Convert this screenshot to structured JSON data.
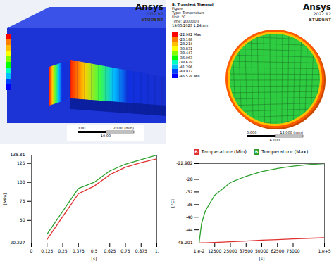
{
  "screenshots": [
    {
      "logo": [
        "Ansys",
        "2022 R2",
        "STUDENT"
      ],
      "scale_bar": [
        "0.00",
        "20.00 (mm)",
        "10.00"
      ]
    },
    {
      "logo": [
        "Ansys",
        "2022 R2",
        "STUDENT"
      ],
      "header": [
        "B: Transient Thermal",
        "Figure",
        "Type: Temperature",
        "Unit: °C",
        "Time: 100000 s",
        "19/05/2023 1:24 am"
      ],
      "legend_labels": [
        "-22.982 Max",
        "-25.198",
        "-28.214",
        "-30.831",
        "-33.447",
        "-36.063",
        "-38.679",
        "-41.296",
        "-43.912",
        "-46.528 Min"
      ],
      "scale_bar": [
        "0.000",
        "12.000 (mm)",
        "6.000"
      ]
    }
  ],
  "chart_data": [
    {
      "type": "line",
      "x_label": "[s]",
      "y_label": "[MPa]",
      "x": [
        0.125,
        0.25,
        0.375,
        0.5,
        0.625,
        0.75,
        0.875,
        1
      ],
      "series": [
        {
          "color": "#2ca02c",
          "values": [
            32,
            62,
            92,
            100,
            115,
            124,
            130,
            135.81
          ]
        },
        {
          "color": "#e03030",
          "values": [
            25,
            55,
            85,
            95,
            110,
            120,
            126,
            131
          ]
        }
      ],
      "xlim": [
        0,
        1
      ],
      "xticks": [
        0,
        0.125,
        0.25,
        0.375,
        0.5,
        0.625,
        0.75,
        0.875,
        {
          "value": 1,
          "label": "1."
        }
      ],
      "ylim": [
        20.227,
        135.81
      ],
      "yticks": [
        20.227,
        50,
        75,
        100,
        125,
        135.81
      ],
      "grid": false
    },
    {
      "type": "line",
      "x_label": "[s]",
      "y_label": "[°C]",
      "legend": "top",
      "x": [
        0.01,
        2000,
        5000,
        12500,
        25000,
        37500,
        50000,
        62500,
        75000,
        87500,
        100000
      ],
      "series": [
        {
          "name": "Temperature (Min)",
          "tag": "B",
          "color": "#e03030",
          "values": [
            -48.201,
            -48.15,
            -48.1,
            -48.0,
            -47.8,
            -47.55,
            -47.3,
            -47.1,
            -46.9,
            -46.7,
            -46.528
          ]
        },
        {
          "name": "Temperature (Max)",
          "tag": "B",
          "color": "#2ca02c",
          "values": [
            -48.201,
            -42,
            -38,
            -33,
            -29,
            -27,
            -25.5,
            -24.5,
            -23.8,
            -23.3,
            -22.982
          ]
        }
      ],
      "xlim": [
        0.01,
        100000
      ],
      "xticks": [
        {
          "value": 0.01,
          "label": "1.e-2"
        },
        12500,
        25000,
        37500,
        50000,
        62500,
        75000,
        {
          "value": 100000,
          "label": "1.e+5"
        }
      ],
      "ylim": [
        -48.201,
        -22.982
      ],
      "yticks": [
        -48.201,
        -44,
        -40,
        -36,
        -32,
        -28,
        -22.982
      ],
      "grid": false
    }
  ]
}
